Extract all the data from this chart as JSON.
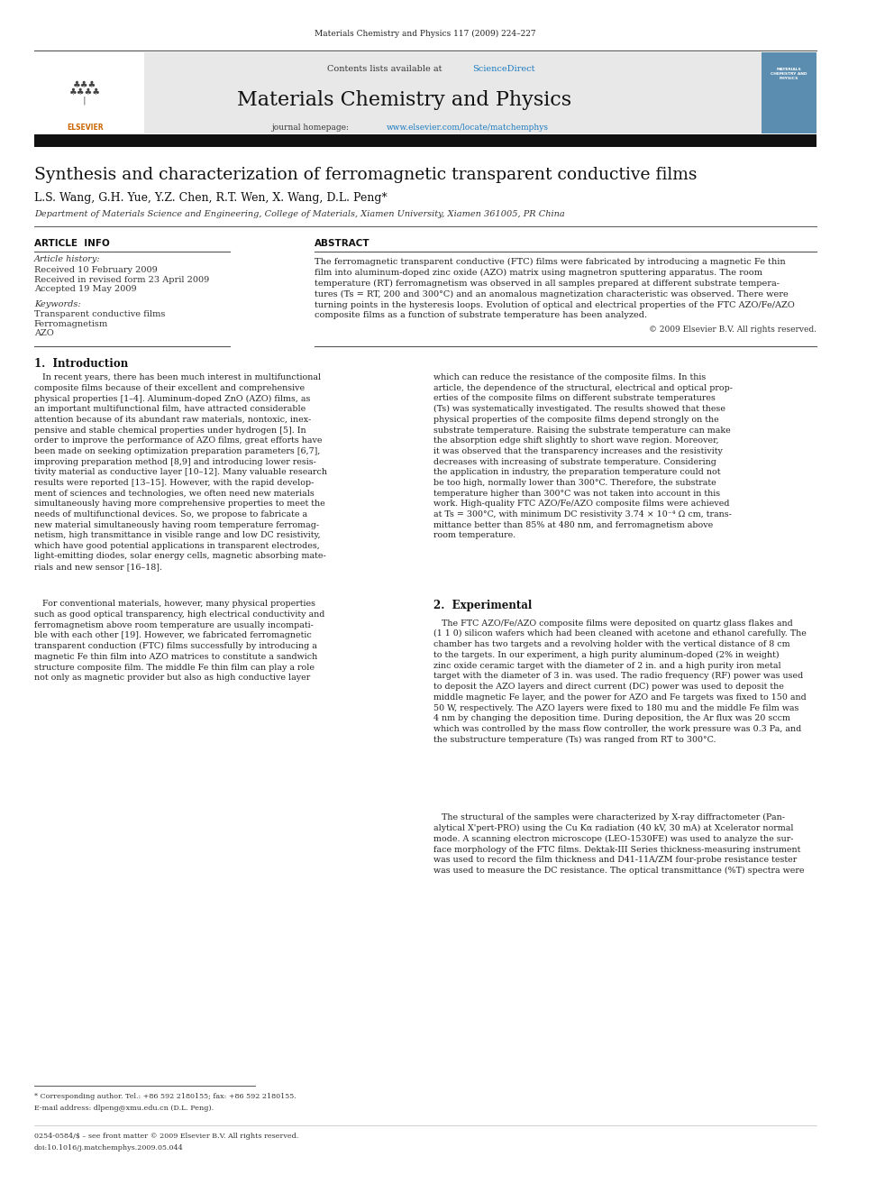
{
  "page_width": 9.92,
  "page_height": 13.23,
  "bg_color": "#ffffff",
  "journal_ref": "Materials Chemistry and Physics 117 (2009) 224–227",
  "contents_line": "Contents lists available at ",
  "sciencedirect": "ScienceDirect",
  "journal_name": "Materials Chemistry and Physics",
  "journal_homepage_prefix": "journal homepage: ",
  "journal_url": "www.elsevier.com/locate/matchemphys",
  "header_bg": "#e8e8e8",
  "header_bar_color": "#1a1a1a",
  "paper_title": "Synthesis and characterization of ferromagnetic transparent conductive films",
  "authors": "L.S. Wang, G.H. Yue, Y.Z. Chen, R.T. Wen, X. Wang, D.L. Peng*",
  "affiliation": "Department of Materials Science and Engineering, College of Materials, Xiamen University, Xiamen 361005, PR China",
  "section_article_info": "ARTICLE  INFO",
  "section_abstract": "ABSTRACT",
  "article_history_label": "Article history:",
  "received": "Received 10 February 2009",
  "received_revised": "Received in revised form 23 April 2009",
  "accepted": "Accepted 19 May 2009",
  "keywords_label": "Keywords:",
  "keyword1": "Transparent conductive films",
  "keyword2": "Ferromagnetism",
  "keyword3": "AZO",
  "copyright": "© 2009 Elsevier B.V. All rights reserved.",
  "intro_heading": "1.  Introduction",
  "exp_heading": "2.  Experimental",
  "footnote_star": "* Corresponding author. Tel.: +86 592 2180155; fax: +86 592 2180155.",
  "footnote_email": "E-mail address: dlpeng@xmu.edu.cn (D.L. Peng).",
  "footer_issn": "0254-0584/$ – see front matter © 2009 Elsevier B.V. All rights reserved.",
  "footer_doi": "doi:10.1016/j.matchemphys.2009.05.044"
}
